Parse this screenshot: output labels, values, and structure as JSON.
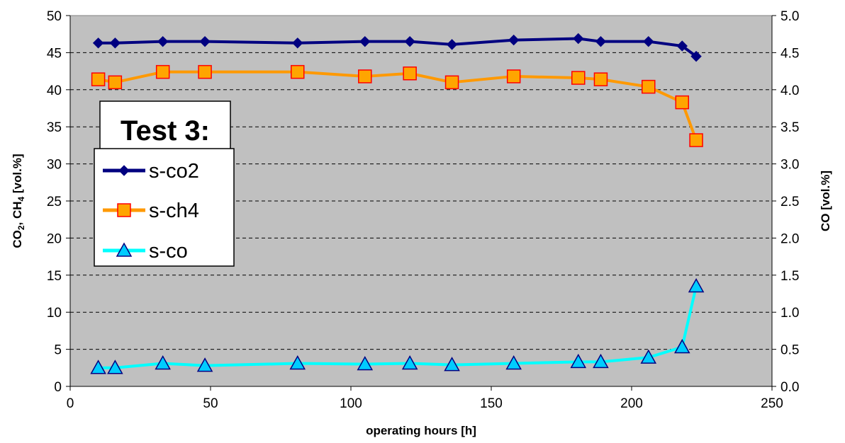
{
  "chart_data": {
    "type": "line",
    "xlabel": "operating hours [h]",
    "ylabel_left_main": "CO",
    "ylabel_left_sub1": "2",
    "ylabel_left_mid": ", CH",
    "ylabel_left_sub2": "4",
    "ylabel_left_end": " [vol.%]",
    "ylabel_right": "CO [vol.%]",
    "xlim": [
      0,
      250
    ],
    "ylim_left": [
      0,
      50
    ],
    "ylim_right": [
      0.0,
      5.0
    ],
    "xticks": [
      "0",
      "50",
      "100",
      "150",
      "200",
      "250"
    ],
    "yticks_left": [
      "0",
      "5",
      "10",
      "15",
      "20",
      "25",
      "30",
      "35",
      "40",
      "45",
      "50"
    ],
    "yticks_right": [
      "0.0",
      "0.5",
      "1.0",
      "1.5",
      "2.0",
      "2.5",
      "3.0",
      "3.5",
      "4.0",
      "4.5",
      "5.0"
    ],
    "grid": "horizontal dashed",
    "plot_background": "#c0c0c0",
    "legend_title": "Test 3:",
    "legend_position": "left",
    "series": [
      {
        "name": "s-co2",
        "axis": "left",
        "color": "#000080",
        "marker": "diamond",
        "x": [
          10,
          16,
          33,
          48,
          81,
          105,
          121,
          136,
          158,
          181,
          189,
          206,
          218,
          223
        ],
        "y": [
          46.3,
          46.3,
          46.5,
          46.5,
          46.3,
          46.5,
          46.5,
          46.1,
          46.7,
          46.9,
          46.5,
          46.5,
          45.9,
          44.5
        ]
      },
      {
        "name": "s-ch4",
        "axis": "left",
        "color": "#ff9900",
        "marker_fill": "#ffa500",
        "marker_stroke": "#ff0000",
        "marker": "square",
        "x": [
          10,
          16,
          33,
          48,
          81,
          105,
          121,
          136,
          158,
          181,
          189,
          206,
          218,
          223
        ],
        "y": [
          41.4,
          41.0,
          42.4,
          42.4,
          42.4,
          41.8,
          42.2,
          41.0,
          41.8,
          41.6,
          41.4,
          40.4,
          38.3,
          33.2
        ]
      },
      {
        "name": "s-co",
        "axis": "right",
        "color": "#00ffff",
        "marker_fill": "#00ccff",
        "marker_stroke": "#000080",
        "marker": "triangle",
        "x": [
          10,
          16,
          33,
          48,
          81,
          105,
          121,
          136,
          158,
          181,
          189,
          206,
          218,
          223
        ],
        "y": [
          0.25,
          0.25,
          0.31,
          0.28,
          0.31,
          0.3,
          0.31,
          0.29,
          0.31,
          0.33,
          0.33,
          0.39,
          0.53,
          1.35
        ]
      }
    ]
  }
}
